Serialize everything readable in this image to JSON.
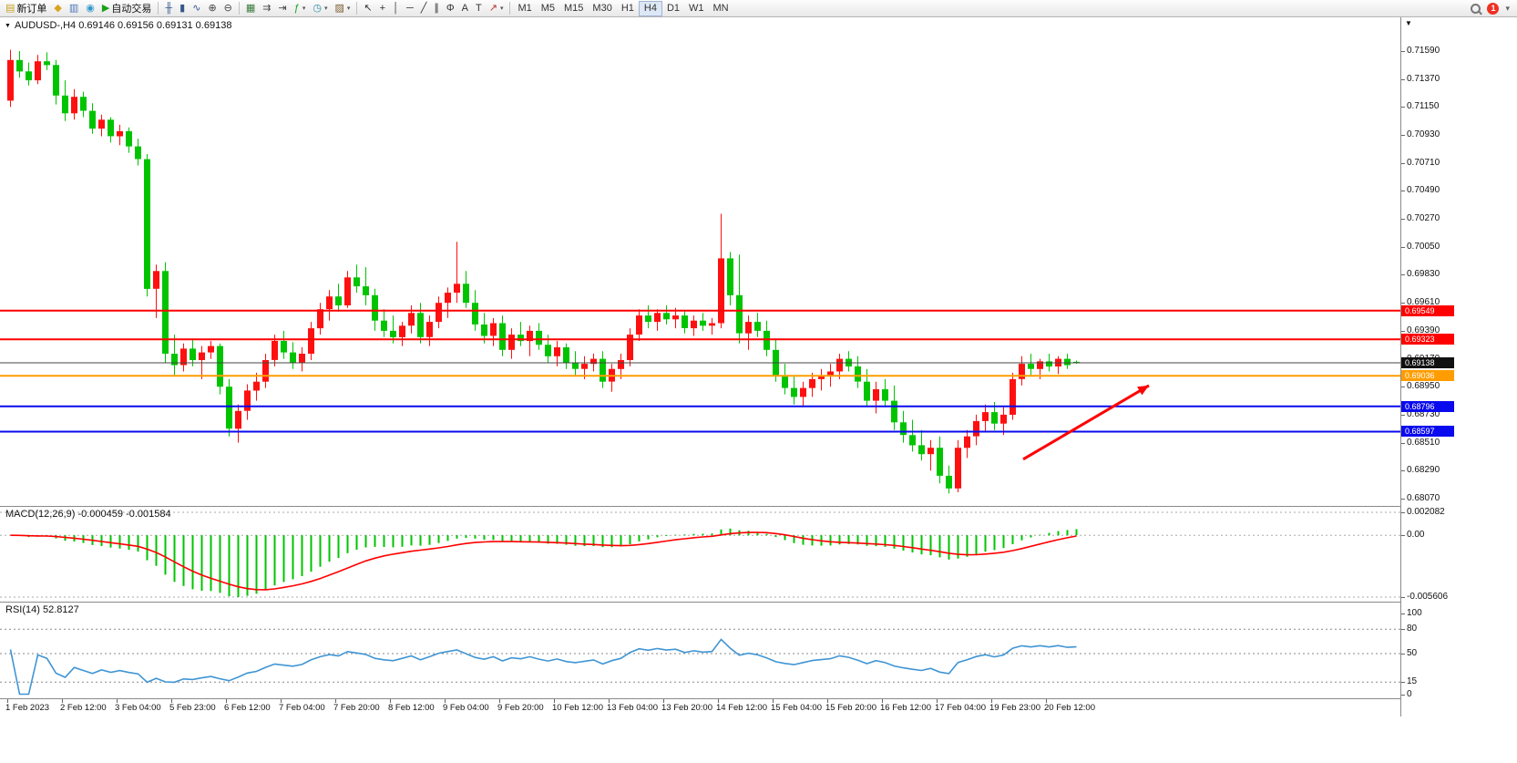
{
  "toolbar": {
    "items": [
      {
        "type": "button",
        "name": "new-order-button",
        "icon": "new-order-icon",
        "glyph": "▤",
        "color": "#c9a227",
        "label": "新订单"
      },
      {
        "type": "button",
        "name": "market-watch-button",
        "icon": "market-watch-icon",
        "glyph": "◆",
        "color": "#d9a51f"
      },
      {
        "type": "button",
        "name": "navigator-button",
        "icon": "navigator-icon",
        "glyph": "▥",
        "color": "#4a74b8"
      },
      {
        "type": "button",
        "name": "terminal-button",
        "icon": "terminal-icon",
        "glyph": "◉",
        "color": "#3398cc"
      },
      {
        "type": "button",
        "name": "autotrade-button",
        "icon": "autotrade-icon",
        "glyph": "▶",
        "color": "#1ba11b",
        "label": "自动交易"
      },
      {
        "type": "sep"
      },
      {
        "type": "button",
        "name": "ohlc-bars-button",
        "icon": "ohlc-bars-icon",
        "glyph": "╫",
        "color": "#35588c"
      },
      {
        "type": "button",
        "name": "candlestick-button",
        "icon": "candlestick-icon",
        "glyph": "▮",
        "color": "#35588c"
      },
      {
        "type": "button",
        "name": "line-chart-button",
        "icon": "line-chart-icon",
        "glyph": "∿",
        "color": "#35588c"
      },
      {
        "type": "button",
        "name": "zoom-in-button",
        "icon": "zoom-in-icon",
        "glyph": "⊕",
        "color": "#444444"
      },
      {
        "type": "button",
        "name": "zoom-out-button",
        "icon": "zoom-out-icon",
        "glyph": "⊖",
        "color": "#444444"
      },
      {
        "type": "sep"
      },
      {
        "type": "button",
        "name": "tile-windows-button",
        "icon": "tile-windows-icon",
        "glyph": "▦",
        "color": "#3a7a3a"
      },
      {
        "type": "button",
        "name": "auto-scroll-button",
        "icon": "auto-scroll-icon",
        "glyph": "⇉",
        "color": "#444444"
      },
      {
        "type": "button",
        "name": "chart-shift-button",
        "icon": "chart-shift-icon",
        "glyph": "⇥",
        "color": "#444444"
      },
      {
        "type": "button",
        "name": "indicators-button",
        "icon": "indicators-icon",
        "glyph": "ƒ",
        "color": "#1ba11b",
        "dropdown": true
      },
      {
        "type": "button",
        "name": "periods-button",
        "icon": "clock-icon",
        "glyph": "◷",
        "color": "#2a8ca8",
        "dropdown": true
      },
      {
        "type": "button",
        "name": "templates-button",
        "icon": "templates-icon",
        "glyph": "▨",
        "color": "#7a5c2e",
        "dropdown": true
      },
      {
        "type": "sep"
      },
      {
        "type": "button",
        "name": "cursor-button",
        "icon": "cursor-icon",
        "glyph": "↖",
        "color": "#333333"
      },
      {
        "type": "button",
        "name": "crosshair-button",
        "icon": "crosshair-icon",
        "glyph": "+",
        "color": "#333333"
      },
      {
        "type": "button",
        "name": "vertical-line-button",
        "icon": "vertical-line-icon",
        "glyph": "│",
        "color": "#333333"
      },
      {
        "type": "button",
        "name": "horizontal-line-button",
        "icon": "horizontal-line-icon",
        "glyph": "─",
        "color": "#333333"
      },
      {
        "type": "button",
        "name": "trendline-button",
        "icon": "trendline-icon",
        "glyph": "╱",
        "color": "#333333"
      },
      {
        "type": "button",
        "name": "channel-button",
        "icon": "channel-icon",
        "glyph": "∥",
        "color": "#333333"
      },
      {
        "type": "button",
        "name": "fibonacci-button",
        "icon": "fibonacci-icon",
        "glyph": "Φ",
        "color": "#333333"
      },
      {
        "type": "button",
        "name": "text-button",
        "icon": "text-icon",
        "glyph": "A",
        "color": "#333333"
      },
      {
        "type": "button",
        "name": "text-label-button",
        "icon": "text-label-icon",
        "glyph": "T",
        "color": "#333333"
      },
      {
        "type": "button",
        "name": "arrows-button",
        "icon": "arrows-icon",
        "glyph": "↗",
        "color": "#bb3333",
        "dropdown": true
      },
      {
        "type": "sep"
      }
    ],
    "timeframes": [
      "M1",
      "M5",
      "M15",
      "M30",
      "H1",
      "H4",
      "D1",
      "W1",
      "MN"
    ],
    "active_timeframe": "H4",
    "notification_count": "1"
  },
  "chart_header": {
    "title": "AUDUSD-,H4 0.69146 0.69156 0.69131 0.69138",
    "symbol_period": "AUDUSD-,H4",
    "open": "0.69146",
    "high": "0.69156",
    "low": "0.69131",
    "close": "0.69138"
  },
  "chart": {
    "price_axis": [
      "0.71590",
      "0.71370",
      "0.71150",
      "0.70930",
      "0.70710",
      "0.70490",
      "0.70270",
      "0.70050",
      "0.69830",
      "0.69610",
      "0.69390",
      "0.69170",
      "0.68950",
      "0.68730",
      "0.68510",
      "0.68290",
      "0.68070"
    ],
    "time_axis": [
      "1 Feb 2023",
      "2 Feb 12:00",
      "3 Feb 04:00",
      "5 Feb 23:00",
      "6 Feb 12:00",
      "7 Feb 04:00",
      "7 Feb 20:00",
      "8 Feb 12:00",
      "9 Feb 04:00",
      "9 Feb 20:00",
      "10 Feb 12:00",
      "13 Feb 04:00",
      "13 Feb 20:00",
      "14 Feb 12:00",
      "15 Feb 04:00",
      "15 Feb 20:00",
      "16 Feb 12:00",
      "17 Feb 04:00",
      "19 Feb 23:00",
      "20 Feb 12:00"
    ]
  },
  "macd": {
    "label": "MACD(12,26,9) -0.000459 -0.001584",
    "axis": [
      "0.002082",
      "0.00",
      "-0.005606"
    ]
  },
  "rsi": {
    "label": "RSI(14) 52.8127",
    "value": "52.8127",
    "axis": [
      "100",
      "80",
      "50",
      "15",
      "0"
    ],
    "levels": [
      80,
      50,
      15
    ]
  },
  "chart_data": {
    "type": "candlestick",
    "symbol": "AUDUSD-",
    "period": "H4",
    "price_range": [
      0.6807,
      0.7159
    ],
    "colors": {
      "up": "#ff1010",
      "down": "#00c400",
      "macd_histogram": "#00c400",
      "macd_signal": "#ff0000",
      "rsi_line": "#3f95d4",
      "level_red": "#ff0000",
      "level_orange": "#ff9d00",
      "level_blue": "#0a0aee"
    },
    "levels": [
      {
        "price": 0.69549,
        "label": "0.69549",
        "color": "#ff0000",
        "type": "resistance"
      },
      {
        "price": 0.69323,
        "label": "0.69323",
        "color": "#ff0000",
        "type": "resistance"
      },
      {
        "price": 0.69036,
        "label": "0.69036",
        "color": "#ff9d00",
        "type": "pivot"
      },
      {
        "price": 0.68796,
        "label": "0.68796",
        "color": "#0a0aee",
        "type": "support"
      },
      {
        "price": 0.68597,
        "label": "0.68597",
        "color": "#0a0aee",
        "type": "support"
      }
    ],
    "current_price": 0.69138,
    "indicators": [
      {
        "name": "MACD",
        "params": [
          12,
          26,
          9
        ],
        "values": [
          "-0.000459",
          "-0.001584"
        ],
        "range": [
          -0.005606,
          0.002082
        ]
      },
      {
        "name": "RSI",
        "params": [
          14
        ],
        "value": 52.8127,
        "levels": [
          80,
          50,
          15
        ],
        "range": [
          0,
          100
        ]
      }
    ],
    "annotations": [
      {
        "type": "arrow",
        "color": "#ff0000",
        "from": {
          "index": 111.5,
          "price": 0.6838
        },
        "to": {
          "index": 125.3,
          "price": 0.6896
        }
      }
    ],
    "time_label_every": 6,
    "candles": [
      [
        0.712,
        0.716,
        0.7115,
        0.7152
      ],
      [
        0.7152,
        0.7159,
        0.7138,
        0.7143
      ],
      [
        0.7143,
        0.715,
        0.7132,
        0.7136
      ],
      [
        0.7136,
        0.7156,
        0.7133,
        0.7151
      ],
      [
        0.7151,
        0.7158,
        0.7144,
        0.7148
      ],
      [
        0.7148,
        0.7152,
        0.7117,
        0.7124
      ],
      [
        0.7124,
        0.7136,
        0.7104,
        0.711
      ],
      [
        0.711,
        0.7129,
        0.7105,
        0.7123
      ],
      [
        0.7123,
        0.7127,
        0.7107,
        0.7112
      ],
      [
        0.7112,
        0.7118,
        0.7094,
        0.7098
      ],
      [
        0.7098,
        0.7109,
        0.7092,
        0.7105
      ],
      [
        0.7105,
        0.7107,
        0.7087,
        0.7092
      ],
      [
        0.7092,
        0.7101,
        0.7085,
        0.7096
      ],
      [
        0.7096,
        0.7099,
        0.7079,
        0.7084
      ],
      [
        0.7084,
        0.709,
        0.7069,
        0.7074
      ],
      [
        0.7074,
        0.7078,
        0.6966,
        0.6972
      ],
      [
        0.6972,
        0.6991,
        0.6949,
        0.6986
      ],
      [
        0.6986,
        0.6993,
        0.6914,
        0.6921
      ],
      [
        0.6921,
        0.6936,
        0.6904,
        0.6912
      ],
      [
        0.6912,
        0.6929,
        0.6907,
        0.6925
      ],
      [
        0.6925,
        0.6933,
        0.6911,
        0.6916
      ],
      [
        0.6916,
        0.6927,
        0.6901,
        0.6922
      ],
      [
        0.6922,
        0.6931,
        0.6917,
        0.6927
      ],
      [
        0.6927,
        0.6929,
        0.6889,
        0.6895
      ],
      [
        0.6895,
        0.6901,
        0.6856,
        0.6862
      ],
      [
        0.6862,
        0.6881,
        0.6851,
        0.6876
      ],
      [
        0.6876,
        0.6897,
        0.6869,
        0.6892
      ],
      [
        0.6892,
        0.6906,
        0.6884,
        0.6899
      ],
      [
        0.6899,
        0.6921,
        0.6894,
        0.6916
      ],
      [
        0.6916,
        0.6936,
        0.6911,
        0.6931
      ],
      [
        0.6931,
        0.6939,
        0.6917,
        0.6922
      ],
      [
        0.6922,
        0.693,
        0.6909,
        0.6914
      ],
      [
        0.6914,
        0.6926,
        0.6907,
        0.6921
      ],
      [
        0.6921,
        0.6946,
        0.6916,
        0.6941
      ],
      [
        0.6941,
        0.6961,
        0.6936,
        0.6956
      ],
      [
        0.6956,
        0.6971,
        0.6947,
        0.6966
      ],
      [
        0.6966,
        0.6976,
        0.6954,
        0.6959
      ],
      [
        0.6959,
        0.6986,
        0.6957,
        0.6981
      ],
      [
        0.6981,
        0.6991,
        0.6969,
        0.6974
      ],
      [
        0.6974,
        0.6989,
        0.6959,
        0.6967
      ],
      [
        0.6967,
        0.6972,
        0.6939,
        0.6947
      ],
      [
        0.6947,
        0.6956,
        0.6934,
        0.6939
      ],
      [
        0.6939,
        0.6951,
        0.6929,
        0.6934
      ],
      [
        0.6934,
        0.6946,
        0.6927,
        0.6943
      ],
      [
        0.6943,
        0.6959,
        0.6937,
        0.6953
      ],
      [
        0.6953,
        0.6961,
        0.6929,
        0.6934
      ],
      [
        0.6934,
        0.6951,
        0.6927,
        0.6946
      ],
      [
        0.6946,
        0.6966,
        0.6941,
        0.6961
      ],
      [
        0.6961,
        0.6973,
        0.6949,
        0.6969
      ],
      [
        0.6969,
        0.7009,
        0.6961,
        0.6976
      ],
      [
        0.6976,
        0.6986,
        0.6957,
        0.6961
      ],
      [
        0.6961,
        0.6971,
        0.6939,
        0.6944
      ],
      [
        0.6944,
        0.6953,
        0.6929,
        0.6935
      ],
      [
        0.6935,
        0.6949,
        0.6927,
        0.6945
      ],
      [
        0.6945,
        0.6951,
        0.6919,
        0.6924
      ],
      [
        0.6924,
        0.6941,
        0.6917,
        0.6936
      ],
      [
        0.6936,
        0.6946,
        0.6927,
        0.6931
      ],
      [
        0.6931,
        0.6943,
        0.6919,
        0.6939
      ],
      [
        0.6939,
        0.6945,
        0.6924,
        0.6928
      ],
      [
        0.6928,
        0.6936,
        0.6914,
        0.6919
      ],
      [
        0.6919,
        0.6931,
        0.6911,
        0.6926
      ],
      [
        0.6926,
        0.6929,
        0.6909,
        0.6914
      ],
      [
        0.6914,
        0.6923,
        0.6904,
        0.6909
      ],
      [
        0.6909,
        0.6919,
        0.6901,
        0.6913
      ],
      [
        0.6913,
        0.6921,
        0.6907,
        0.6917
      ],
      [
        0.6917,
        0.6923,
        0.6894,
        0.6899
      ],
      [
        0.6899,
        0.6913,
        0.6891,
        0.6909
      ],
      [
        0.6909,
        0.6921,
        0.6901,
        0.6916
      ],
      [
        0.6916,
        0.6941,
        0.6911,
        0.6936
      ],
      [
        0.6936,
        0.6956,
        0.6931,
        0.6951
      ],
      [
        0.6951,
        0.6959,
        0.6941,
        0.6946
      ],
      [
        0.6946,
        0.6956,
        0.6939,
        0.6953
      ],
      [
        0.6953,
        0.6959,
        0.6944,
        0.6948
      ],
      [
        0.6948,
        0.6957,
        0.6941,
        0.6951
      ],
      [
        0.6951,
        0.6955,
        0.6937,
        0.6941
      ],
      [
        0.6941,
        0.6951,
        0.6935,
        0.6947
      ],
      [
        0.6947,
        0.6953,
        0.6939,
        0.6943
      ],
      [
        0.6943,
        0.6949,
        0.6936,
        0.6945
      ],
      [
        0.6945,
        0.7031,
        0.6941,
        0.6996
      ],
      [
        0.6996,
        0.7001,
        0.6959,
        0.6967
      ],
      [
        0.6967,
        0.6999,
        0.6929,
        0.6937
      ],
      [
        0.6937,
        0.6951,
        0.6924,
        0.6946
      ],
      [
        0.6946,
        0.6953,
        0.6934,
        0.6939
      ],
      [
        0.6939,
        0.6947,
        0.6919,
        0.6924
      ],
      [
        0.6924,
        0.6933,
        0.6899,
        0.6904
      ],
      [
        0.6904,
        0.6913,
        0.6889,
        0.6894
      ],
      [
        0.6894,
        0.6903,
        0.6881,
        0.6887
      ],
      [
        0.6887,
        0.6899,
        0.6879,
        0.6894
      ],
      [
        0.6894,
        0.6906,
        0.6887,
        0.6901
      ],
      [
        0.6901,
        0.6909,
        0.6892,
        0.6904
      ],
      [
        0.6904,
        0.6913,
        0.6895,
        0.6907
      ],
      [
        0.6907,
        0.6921,
        0.6901,
        0.6917
      ],
      [
        0.6917,
        0.6923,
        0.6907,
        0.6911
      ],
      [
        0.6911,
        0.6919,
        0.6894,
        0.6899
      ],
      [
        0.6899,
        0.6909,
        0.6879,
        0.6884
      ],
      [
        0.6884,
        0.6899,
        0.6874,
        0.6893
      ],
      [
        0.6893,
        0.6901,
        0.6879,
        0.6884
      ],
      [
        0.6884,
        0.6896,
        0.6861,
        0.6867
      ],
      [
        0.6867,
        0.6876,
        0.6851,
        0.6857
      ],
      [
        0.6857,
        0.6869,
        0.6844,
        0.6849
      ],
      [
        0.6849,
        0.6861,
        0.6837,
        0.6842
      ],
      [
        0.6842,
        0.6853,
        0.6829,
        0.6847
      ],
      [
        0.6847,
        0.6856,
        0.6819,
        0.6825
      ],
      [
        0.6825,
        0.6833,
        0.6811,
        0.6815
      ],
      [
        0.6815,
        0.6853,
        0.6812,
        0.6847
      ],
      [
        0.6847,
        0.6861,
        0.6839,
        0.6856
      ],
      [
        0.6856,
        0.6873,
        0.6849,
        0.6868
      ],
      [
        0.6868,
        0.6881,
        0.6859,
        0.6875
      ],
      [
        0.6875,
        0.6883,
        0.6861,
        0.6866
      ],
      [
        0.6866,
        0.6879,
        0.6857,
        0.6873
      ],
      [
        0.6873,
        0.6906,
        0.6869,
        0.6901
      ],
      [
        0.6901,
        0.6919,
        0.6896,
        0.6913
      ],
      [
        0.6913,
        0.6921,
        0.6904,
        0.6909
      ],
      [
        0.6909,
        0.6917,
        0.6901,
        0.6915
      ],
      [
        0.6915,
        0.6921,
        0.6907,
        0.6911
      ],
      [
        0.6911,
        0.6919,
        0.6905,
        0.6917
      ],
      [
        0.6917,
        0.6921,
        0.6909,
        0.6912
      ],
      [
        0.69146,
        0.69156,
        0.69131,
        0.69138
      ]
    ]
  }
}
